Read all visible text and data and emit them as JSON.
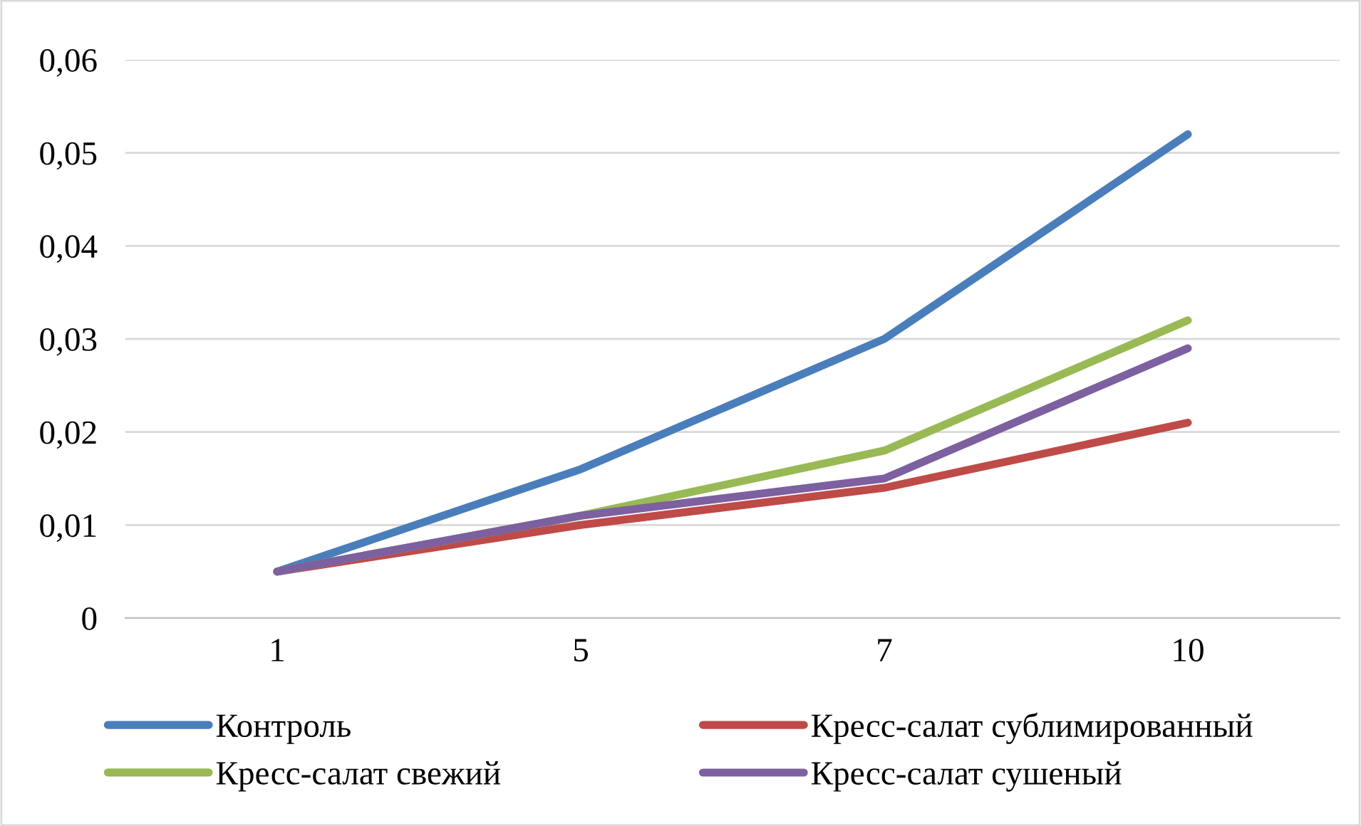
{
  "chart_data": {
    "type": "line",
    "categories": [
      "1",
      "5",
      "7",
      "10"
    ],
    "series": [
      {
        "name": "Контроль",
        "color": "#4a7ebb",
        "values": [
          0.005,
          0.016,
          0.03,
          0.052
        ]
      },
      {
        "name": "Кресс-салат сублимированный",
        "color": "#be4b48",
        "values": [
          0.005,
          0.01,
          0.014,
          0.021
        ]
      },
      {
        "name": "Кресс-салат свежий",
        "color": "#98b954",
        "values": [
          0.005,
          0.011,
          0.018,
          0.032
        ]
      },
      {
        "name": "Кресс-салат сушеный",
        "color": "#7d60a0",
        "values": [
          0.005,
          0.011,
          0.015,
          0.029
        ]
      }
    ],
    "ylim": [
      0,
      0.06
    ],
    "yticks": [
      0,
      {
        "value": 0.01,
        "label": "0,01"
      },
      {
        "value": 0.02,
        "label": "0,02"
      },
      {
        "value": 0.03,
        "label": "0,03"
      },
      {
        "value": 0.04,
        "label": "0,04"
      },
      {
        "value": 0.05,
        "label": "0,05"
      },
      {
        "value": 0.06,
        "label": "0,06"
      }
    ],
    "grid": "y",
    "legend": "bottom",
    "marker": "none",
    "line_style": "solid"
  }
}
